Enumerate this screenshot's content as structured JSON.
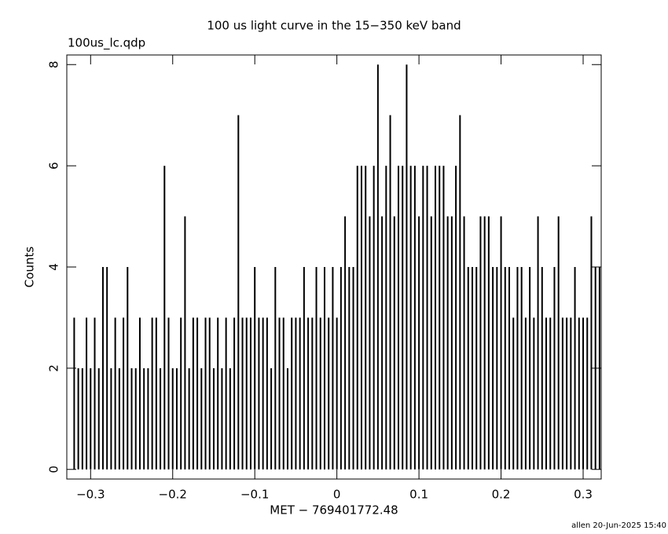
{
  "chart_data": {
    "type": "line",
    "title": "100 us light curve in the 15−350 keV band",
    "subtitle": "100us_lc.qdp",
    "x_label": "MET − 769401772.48",
    "y_label": "Counts",
    "footer": "allen 20-Jun-2025 15:40",
    "xlim": [
      -0.329,
      0.322
    ],
    "ylim": [
      -0.19,
      8.19
    ],
    "xticks": [
      {
        "value": -0.3,
        "label": "−0.3"
      },
      {
        "value": -0.2,
        "label": "−0.2"
      },
      {
        "value": -0.1,
        "label": "−0.1"
      },
      0,
      0.1,
      0.2,
      0.3
    ],
    "yticks": [
      0,
      2,
      4,
      6,
      8
    ],
    "color": "#000000",
    "x": [
      -0.32,
      -0.315,
      -0.31,
      -0.305,
      -0.3,
      -0.295,
      -0.29,
      -0.285,
      -0.28,
      -0.275,
      -0.27,
      -0.265,
      -0.26,
      -0.255,
      -0.25,
      -0.245,
      -0.24,
      -0.235,
      -0.23,
      -0.225,
      -0.22,
      -0.215,
      -0.21,
      -0.205,
      -0.2,
      -0.195,
      -0.19,
      -0.185,
      -0.18,
      -0.175,
      -0.17,
      -0.165,
      -0.16,
      -0.155,
      -0.15,
      -0.145,
      -0.14,
      -0.135,
      -0.13,
      -0.125,
      -0.12,
      -0.115,
      -0.11,
      -0.105,
      -0.1,
      -0.095,
      -0.09,
      -0.085,
      -0.08,
      -0.075,
      -0.07,
      -0.065,
      -0.06,
      -0.055,
      -0.05,
      -0.045,
      -0.04,
      -0.035,
      -0.03,
      -0.025,
      -0.02,
      -0.015,
      -0.01,
      -0.005,
      0,
      0.005,
      0.01,
      0.015,
      0.02,
      0.025,
      0.03,
      0.035,
      0.04,
      0.045,
      0.05,
      0.055,
      0.06,
      0.065,
      0.07,
      0.075,
      0.08,
      0.085,
      0.09,
      0.095,
      0.1,
      0.105,
      0.11,
      0.115,
      0.12,
      0.125,
      0.13,
      0.135,
      0.14,
      0.145,
      0.15,
      0.155,
      0.16,
      0.165,
      0.17,
      0.175,
      0.18,
      0.185,
      0.19,
      0.195,
      0.2,
      0.205,
      0.21,
      0.215,
      0.22,
      0.225,
      0.23,
      0.235,
      0.24,
      0.245,
      0.25,
      0.255,
      0.26,
      0.265,
      0.27,
      0.275,
      0.28,
      0.285,
      0.29,
      0.295,
      0.3,
      0.305,
      0.31,
      0.315,
      0.32
    ],
    "values": [
      3,
      2,
      2,
      3,
      2,
      3,
      2,
      4,
      4,
      2,
      3,
      2,
      3,
      4,
      2,
      2,
      3,
      2,
      2,
      3,
      3,
      2,
      6,
      3,
      2,
      2,
      3,
      5,
      2,
      3,
      3,
      2,
      3,
      3,
      2,
      3,
      2,
      3,
      2,
      3,
      7,
      3,
      3,
      3,
      4,
      3,
      3,
      3,
      2,
      4,
      3,
      3,
      2,
      3,
      3,
      3,
      4,
      3,
      3,
      4,
      3,
      4,
      3,
      4,
      3,
      4,
      5,
      4,
      4,
      6,
      6,
      6,
      5,
      6,
      8,
      5,
      6,
      7,
      5,
      6,
      6,
      8,
      6,
      6,
      5,
      6,
      6,
      5,
      6,
      6,
      6,
      5,
      5,
      6,
      7,
      5,
      4,
      4,
      4,
      5,
      5,
      5,
      4,
      4,
      5,
      4,
      4,
      3,
      4,
      4,
      3,
      4,
      3,
      5,
      4,
      3,
      3,
      4,
      5,
      3,
      3,
      3,
      4,
      3,
      3,
      3,
      5,
      4,
      4
    ]
  }
}
